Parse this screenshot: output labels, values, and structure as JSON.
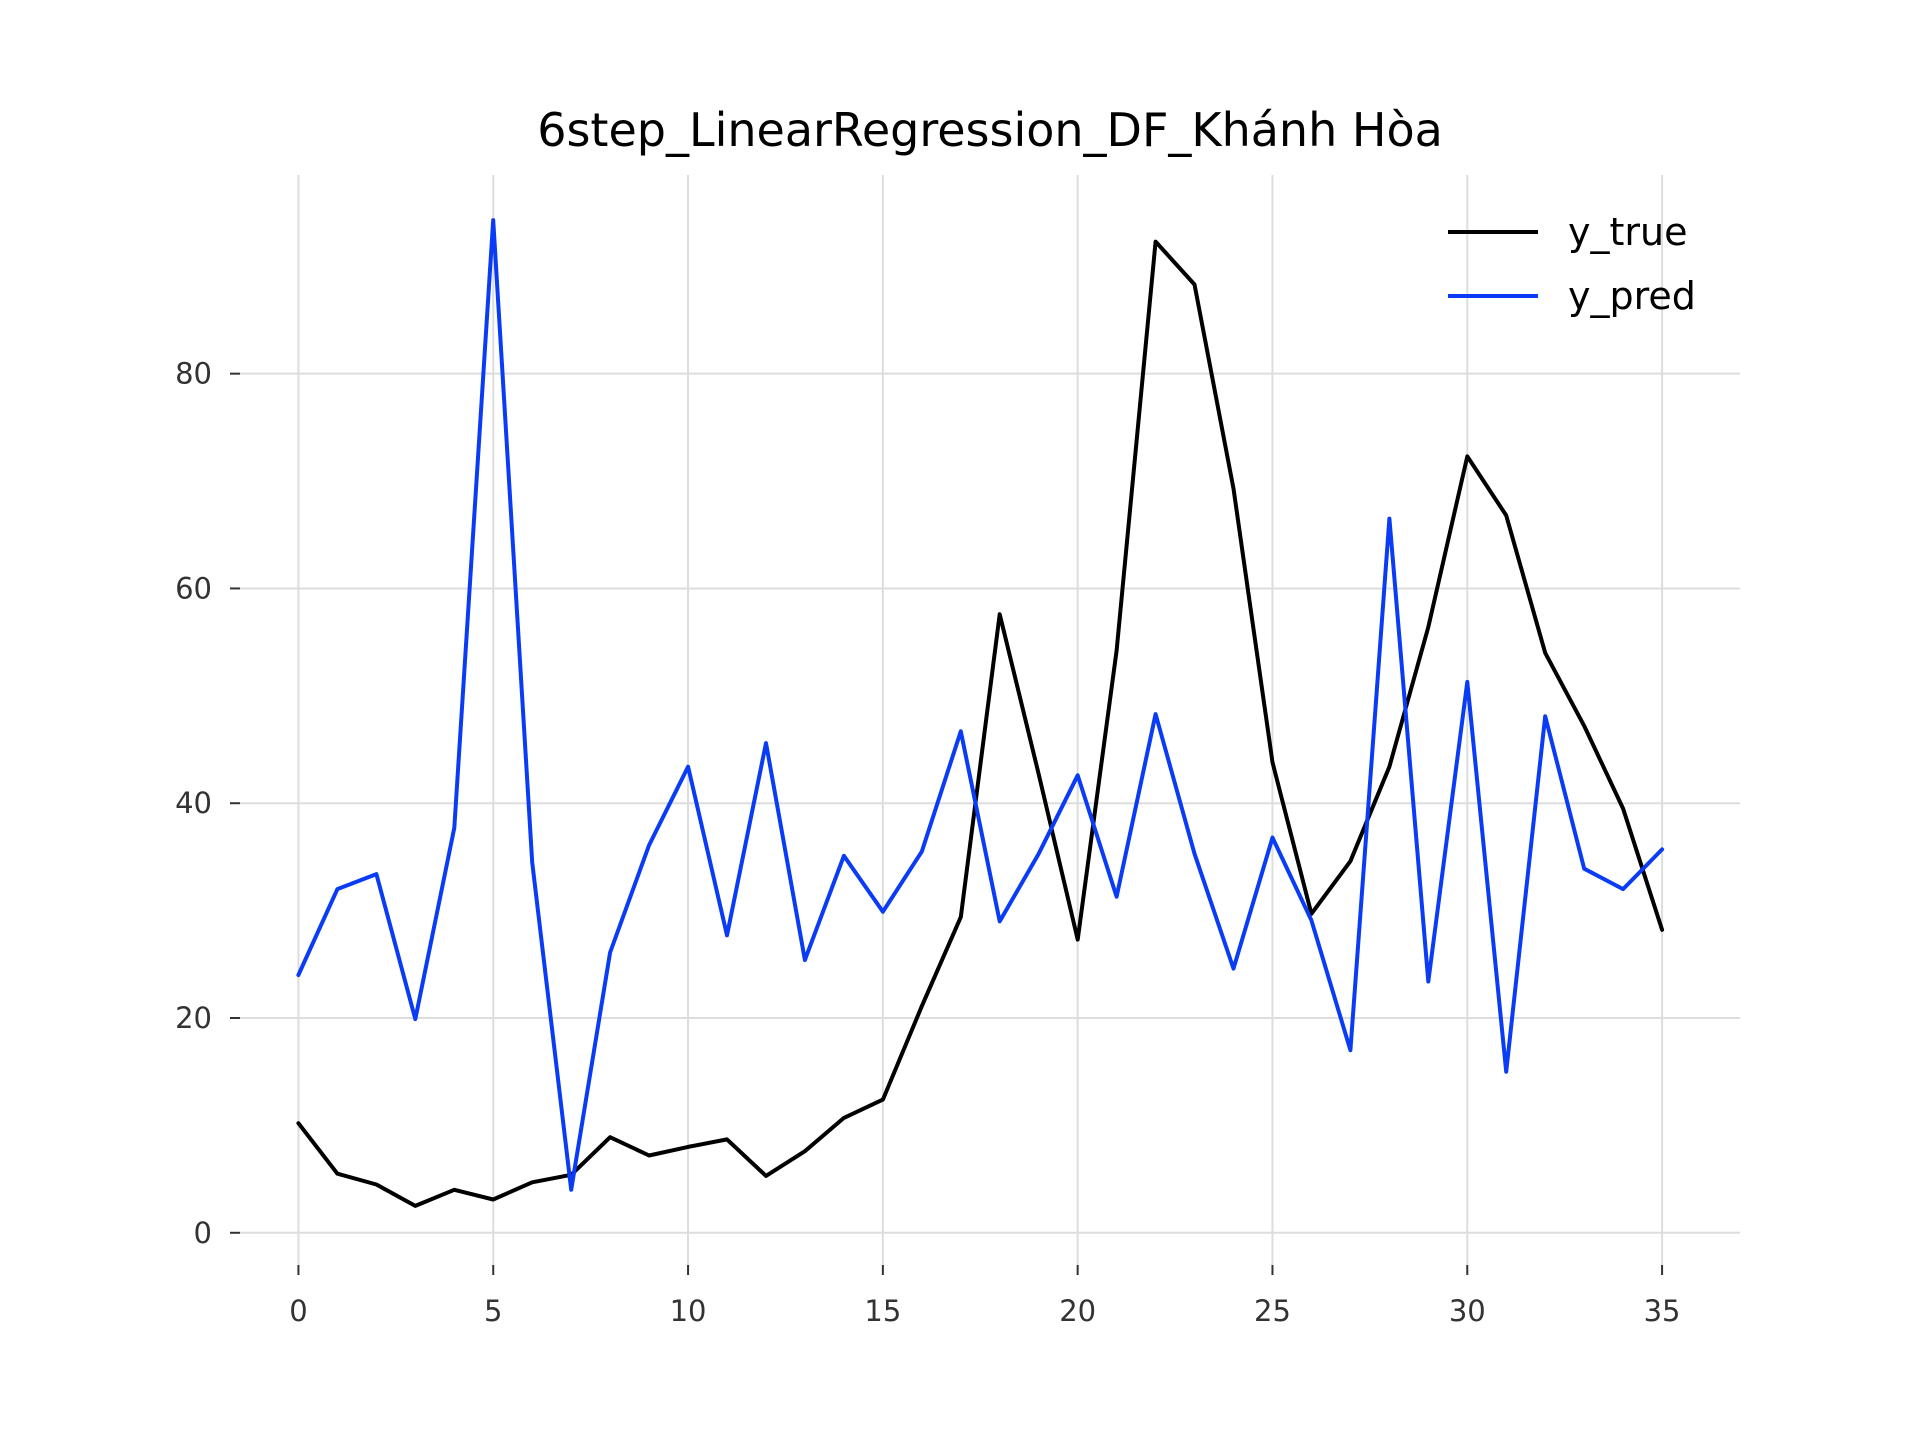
{
  "chart_data": {
    "type": "line",
    "title": "6step_LinearRegression_DF_Khánh Hòa",
    "xlabel": "",
    "ylabel": "",
    "xlim": [
      -1.5,
      37
    ],
    "ylim": [
      -3,
      98.5
    ],
    "xticks": [
      0,
      5,
      10,
      15,
      20,
      25,
      30,
      35
    ],
    "yticks": [
      0,
      20,
      40,
      60,
      80
    ],
    "grid": true,
    "legend_position": "top-right",
    "x": [
      0,
      1,
      2,
      3,
      4,
      5,
      6,
      7,
      8,
      9,
      10,
      11,
      12,
      13,
      14,
      15,
      16,
      17,
      18,
      19,
      20,
      21,
      22,
      23,
      24,
      25,
      26,
      27,
      28,
      29,
      30,
      31,
      32,
      33,
      34,
      35
    ],
    "series": [
      {
        "name": "y_true",
        "color": "#000000",
        "values": [
          10.2,
          5.5,
          4.5,
          2.5,
          4.0,
          3.1,
          4.7,
          5.4,
          8.9,
          7.2,
          8.0,
          8.7,
          5.3,
          7.6,
          10.7,
          12.4,
          21.1,
          29.4,
          57.6,
          42.7,
          27.3,
          54.2,
          92.3,
          88.3,
          69.3,
          43.8,
          29.7,
          34.6,
          43.4,
          56.4,
          72.3,
          66.8,
          54.0,
          47.2,
          39.5,
          28.2
        ]
      },
      {
        "name": "y_pred",
        "color": "#0a3cf5",
        "values": [
          24.0,
          32.0,
          33.4,
          19.9,
          37.7,
          94.3,
          34.5,
          4.0,
          26.1,
          36.1,
          43.4,
          27.7,
          45.6,
          25.4,
          35.1,
          29.9,
          35.5,
          46.7,
          29.0,
          35.3,
          42.6,
          31.3,
          48.3,
          35.3,
          24.6,
          36.8,
          29.1,
          17.0,
          66.5,
          23.4,
          51.3,
          15.0,
          48.1,
          33.9,
          32.0,
          35.7
        ]
      }
    ]
  }
}
